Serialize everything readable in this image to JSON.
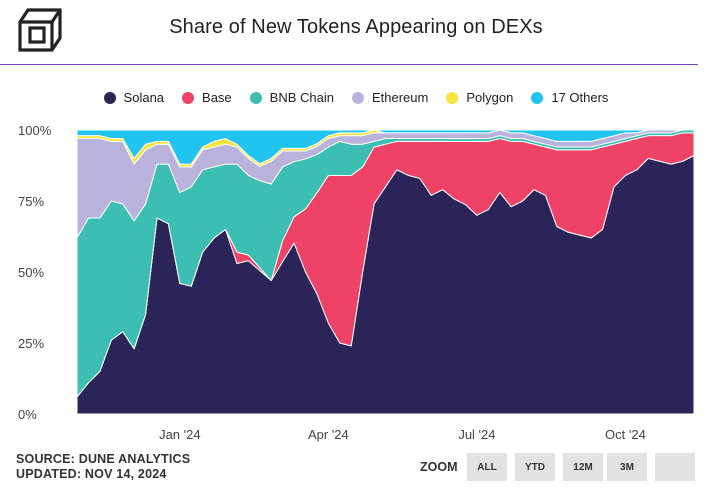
{
  "header": {
    "title": "Share of New Tokens Appearing on DEXs"
  },
  "footer": {
    "source": "SOURCE: DUNE ANALYTICS",
    "updated": "UPDATED: NOV 14, 2024"
  },
  "zoom": {
    "label": "ZOOM",
    "buttons": [
      "ALL",
      "YTD",
      "12M",
      "3M",
      ""
    ]
  },
  "chart_data": {
    "type": "area",
    "stacked": true,
    "legend_position": "top",
    "grid": false,
    "ylim": [
      0,
      100
    ],
    "yticks": [
      "0%",
      "25%",
      "50%",
      "75%",
      "100%"
    ],
    "xticks": [
      {
        "label": "Jan '24",
        "x": 9
      },
      {
        "label": "Apr '24",
        "x": 22
      },
      {
        "label": "Jul '24",
        "x": 35
      },
      {
        "label": "Oct '24",
        "x": 48
      }
    ],
    "x": [
      0,
      1,
      2,
      3,
      4,
      5,
      6,
      7,
      8,
      9,
      10,
      11,
      12,
      13,
      14,
      15,
      16,
      17,
      18,
      19,
      20,
      21,
      22,
      23,
      24,
      25,
      26,
      27,
      28,
      29,
      30,
      31,
      32,
      33,
      34,
      35,
      36,
      37,
      38,
      39,
      40,
      41,
      42,
      43,
      44,
      45,
      46,
      47,
      48,
      49,
      50,
      51,
      52,
      53,
      54
    ],
    "series": [
      {
        "name": "Solana",
        "color": "#2b2458",
        "values": [
          6,
          11,
          15,
          26,
          29,
          23,
          35,
          69,
          67,
          46,
          45,
          57,
          62,
          65,
          53,
          54,
          51,
          47,
          58,
          65,
          54,
          44,
          32,
          25,
          24,
          50,
          74,
          80,
          86,
          84,
          83,
          77,
          79,
          75,
          73,
          70,
          72,
          78,
          73,
          75,
          79,
          77,
          66,
          64,
          63,
          62,
          65,
          80,
          84,
          86,
          90,
          89,
          88,
          89,
          91
        ]
      },
      {
        "name": "Base",
        "color": "#ee4266",
        "values": [
          0,
          0,
          0,
          0,
          0,
          0,
          0,
          0,
          0,
          0,
          0,
          0,
          0,
          0,
          4,
          2,
          1,
          0,
          8,
          10,
          24,
          37,
          52,
          59,
          60,
          37,
          20,
          15,
          10,
          12,
          13,
          19,
          17,
          20,
          22,
          26,
          24,
          19,
          23,
          21,
          16,
          17,
          27,
          29,
          30,
          31,
          29,
          15,
          12,
          11,
          8,
          9,
          10,
          10,
          8
        ]
      },
      {
        "name": "BNB Chain",
        "color": "#3cbfb2",
        "values": [
          56,
          58,
          54,
          49,
          45,
          45,
          39,
          19,
          21,
          32,
          35,
          29,
          25,
          23,
          31,
          28,
          31,
          34,
          28,
          21,
          19,
          14,
          10,
          12,
          11,
          8,
          2,
          2,
          1,
          1,
          1,
          1,
          1,
          1,
          1,
          1,
          1,
          1,
          1,
          1,
          1,
          1,
          1,
          1,
          1,
          1,
          1,
          1,
          1,
          1,
          1,
          1,
          1,
          1,
          1
        ]
      },
      {
        "name": "Ethereum",
        "color": "#b8b2dc",
        "values": [
          35,
          28,
          28,
          21,
          22,
          20,
          19,
          7,
          7,
          9,
          7,
          7,
          7,
          7,
          6,
          6,
          5,
          8,
          6,
          4,
          3,
          3,
          3,
          2,
          3,
          3,
          3,
          2,
          2,
          2,
          2,
          2,
          2,
          2,
          2,
          2,
          2,
          2,
          2,
          2,
          2,
          2,
          2,
          2,
          2,
          2,
          2,
          2,
          2,
          1,
          1,
          1,
          1,
          0,
          0
        ]
      },
      {
        "name": "Polygon",
        "color": "#f7e33e",
        "values": [
          1,
          1,
          1,
          1,
          1,
          2,
          2,
          1,
          1,
          1,
          1,
          1,
          2,
          2,
          1,
          1,
          1,
          1,
          1,
          1,
          1,
          1,
          1,
          1,
          1,
          1,
          1,
          0,
          0,
          0,
          0,
          0,
          0,
          0,
          0,
          0,
          0,
          0,
          0,
          0,
          0,
          0,
          0,
          0,
          0,
          0,
          0,
          0,
          0,
          0,
          0,
          0,
          0,
          0,
          0
        ]
      },
      {
        "name": "17 Others",
        "color": "#20c4ef",
        "values": [
          2,
          2,
          2,
          3,
          3,
          10,
          5,
          4,
          4,
          12,
          12,
          6,
          4,
          3,
          5,
          9,
          12,
          10,
          7,
          7,
          7,
          5,
          2,
          1,
          1,
          1,
          0,
          1,
          1,
          1,
          1,
          1,
          1,
          1,
          1,
          1,
          1,
          0,
          1,
          1,
          2,
          3,
          4,
          4,
          4,
          4,
          3,
          2,
          1,
          1,
          0,
          0,
          0,
          0,
          0
        ]
      }
    ]
  }
}
